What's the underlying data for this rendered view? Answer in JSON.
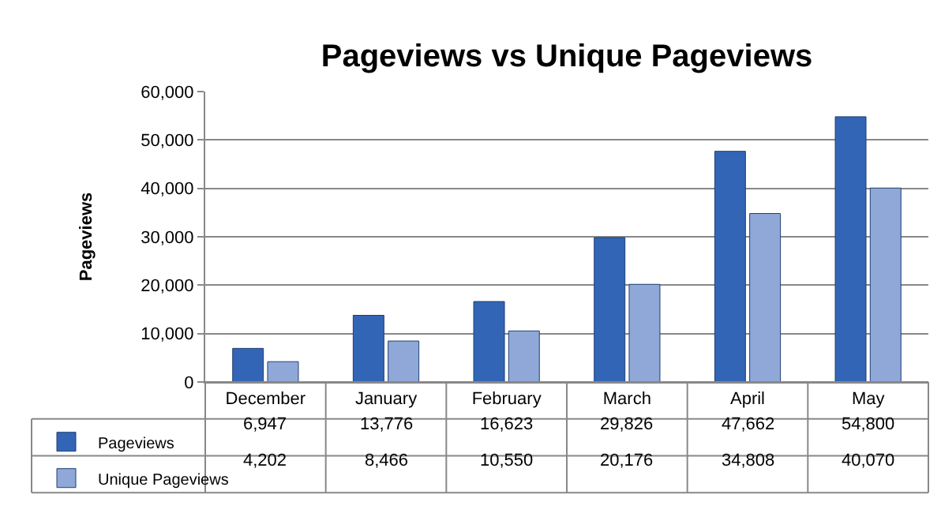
{
  "chart_data": {
    "type": "bar",
    "title": "Pageviews vs Unique Pageviews",
    "ylabel": "Pageviews",
    "categories": [
      "December",
      "January",
      "February",
      "March",
      "April",
      "May"
    ],
    "series": [
      {
        "name": "Pageviews",
        "color": "#3265b5",
        "values": [
          6947,
          13776,
          16623,
          29826,
          47662,
          54800
        ],
        "value_labels": [
          "6,947",
          "13,776",
          "16,623",
          "29,826",
          "47,662",
          "54,800"
        ]
      },
      {
        "name": "Unique Pageviews",
        "color": "#8fa8d8",
        "values": [
          4202,
          8466,
          10550,
          20176,
          34808,
          40070
        ],
        "value_labels": [
          "4,202",
          "8,466",
          "10,550",
          "20,176",
          "34,808",
          "40,070"
        ]
      }
    ],
    "ylim": [
      0,
      60000
    ],
    "yticks": [
      {
        "value": 0,
        "label": "0"
      },
      {
        "value": 10000,
        "label": "10,000"
      },
      {
        "value": 20000,
        "label": "20,000"
      },
      {
        "value": 30000,
        "label": "30,000"
      },
      {
        "value": 40000,
        "label": "40,000"
      },
      {
        "value": 50000,
        "label": "50,000"
      },
      {
        "value": 60000,
        "label": "60,000"
      }
    ],
    "grid": "y",
    "legend": "bottom left"
  }
}
